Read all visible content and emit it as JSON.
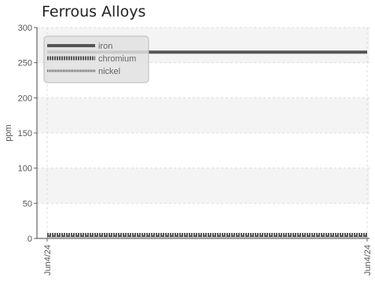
{
  "chart_data": {
    "type": "line",
    "title": "Ferrous Alloys",
    "xlabel": "",
    "ylabel": "ppm",
    "ylim": [
      0,
      300
    ],
    "y_ticks": [
      0,
      50,
      100,
      150,
      200,
      250,
      300
    ],
    "x_ticks": [
      "Jun4/24",
      "Jun4/24"
    ],
    "grid": true,
    "legend_position": "top-left",
    "series": [
      {
        "name": "iron",
        "value": 265,
        "style": "solid",
        "color": "#555555"
      },
      {
        "name": "chromium",
        "value": 5,
        "style": "dashed",
        "color": "#555555"
      },
      {
        "name": "nickel",
        "value": 3,
        "style": "dotted",
        "color": "#555555"
      }
    ]
  }
}
